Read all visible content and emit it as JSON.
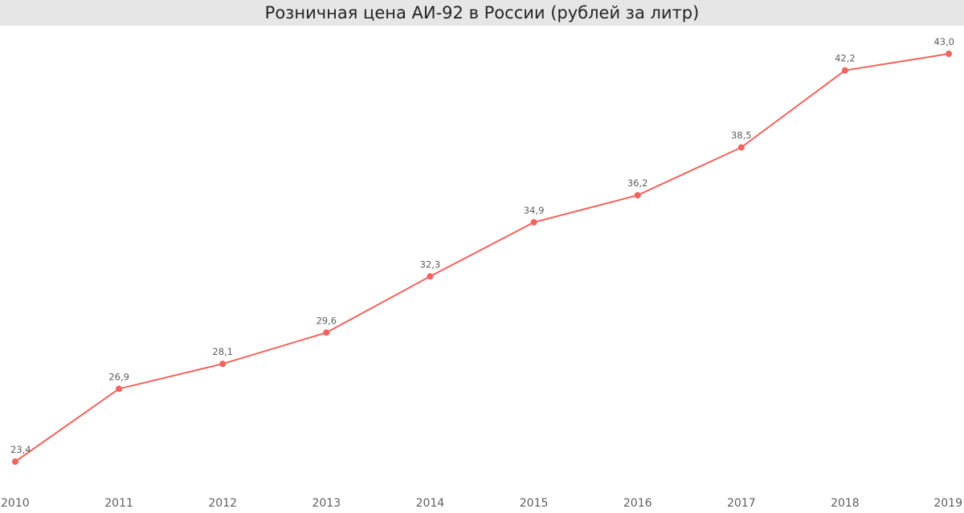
{
  "chart_data": {
    "type": "line",
    "title": "Розничная цена АИ-92 в России (рублей за литр)",
    "categories": [
      "2010",
      "2011",
      "2012",
      "2013",
      "2014",
      "2015",
      "2016",
      "2017",
      "2018",
      "2019"
    ],
    "series": [
      {
        "values": [
          23.4,
          26.9,
          28.1,
          29.6,
          32.3,
          34.9,
          36.2,
          38.5,
          42.2,
          43.0
        ],
        "labels": [
          "23,4",
          "26,9",
          "28,1",
          "29,6",
          "32,3",
          "34,9",
          "36,2",
          "38,5",
          "42,2",
          "43,0"
        ],
        "color": "#f4625d"
      }
    ],
    "xlabel": "",
    "ylabel": "",
    "grid": false,
    "y_axis_visible": false
  },
  "colors": {
    "line": "#f4625d",
    "title_background": "#e6e6e6",
    "text": "#605e5c",
    "title_text": "#252423"
  }
}
